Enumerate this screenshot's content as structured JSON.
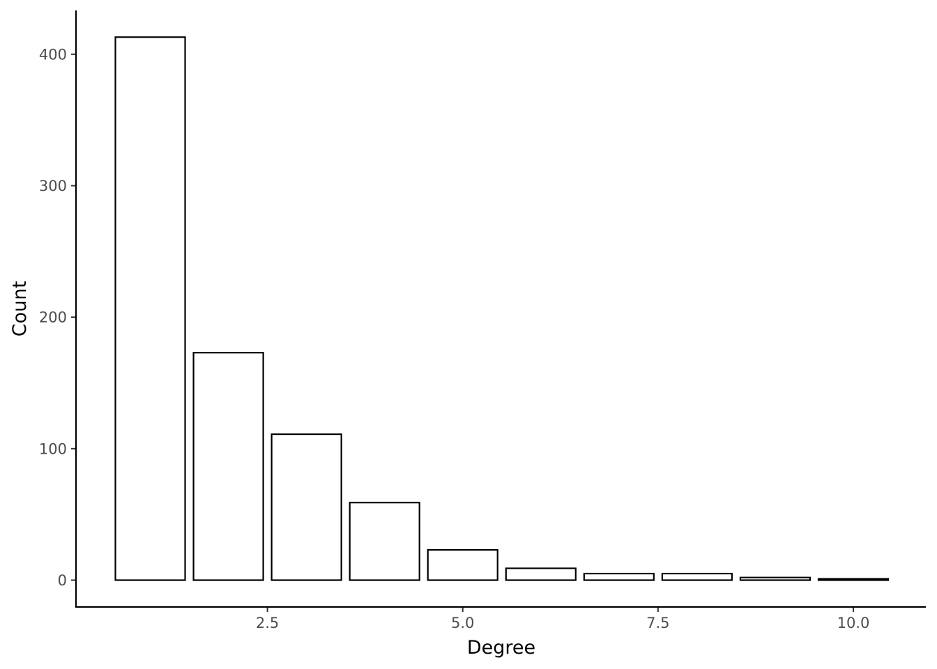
{
  "chart_data": {
    "type": "bar",
    "title": "",
    "xlabel": "Degree",
    "ylabel": "Count",
    "x": [
      1,
      2,
      3,
      4,
      5,
      6,
      7,
      8,
      9,
      10
    ],
    "values": [
      413,
      173,
      111,
      59,
      23,
      9,
      5,
      5,
      2,
      1
    ],
    "xlim": [
      0.5,
      10.5
    ],
    "ylim": [
      0,
      413
    ],
    "xticks": [
      "2.5",
      "5.0",
      "7.5",
      "10.0"
    ],
    "xtick_values": [
      2.5,
      5.0,
      7.5,
      10.0
    ],
    "yticks": [
      "0",
      "100",
      "200",
      "300",
      "400"
    ],
    "ytick_values": [
      0,
      100,
      200,
      300,
      400
    ],
    "bar_fill": "#ffffff",
    "bar_stroke": "#000000",
    "grid": false,
    "legend": "none"
  }
}
